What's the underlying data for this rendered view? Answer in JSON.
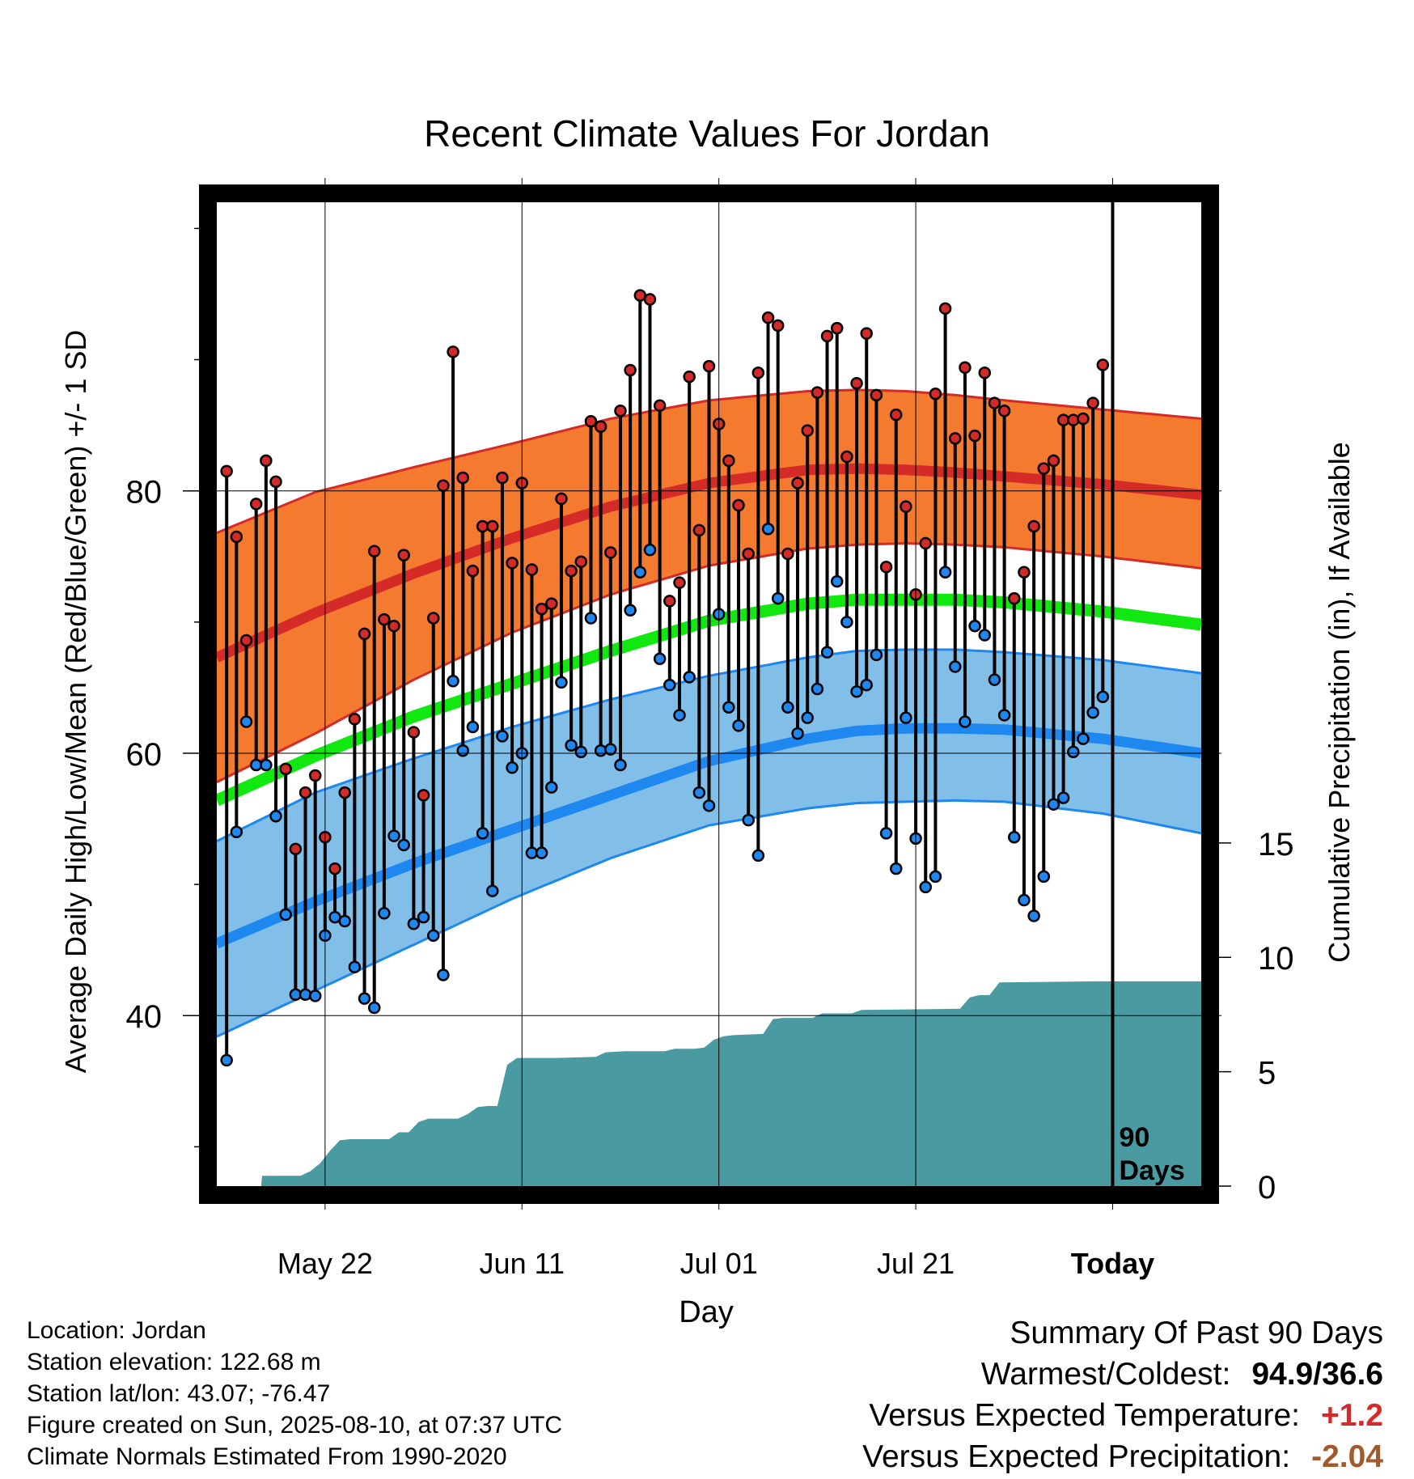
{
  "chart_data": {
    "type": "line",
    "title": "Recent Climate Values For Jordan",
    "xlabel": "Day",
    "ylabel_left": "Average Daily High/Low/Mean (Red/Blue/Green) +/- 1 SD",
    "ylabel_right": "Cumulative Precipitation (in), If Available",
    "ylim_left": [
      27,
      102
    ],
    "yticks_left": [
      40,
      60,
      80
    ],
    "ylim_right": [
      0,
      43
    ],
    "yticks_right": [
      0,
      5,
      10,
      15
    ],
    "xlim": [
      0,
      100
    ],
    "xticks": [
      {
        "day": 11,
        "label": "May 22"
      },
      {
        "day": 31,
        "label": "Jun 11"
      },
      {
        "day": 51,
        "label": "Jul 01"
      },
      {
        "day": 71,
        "label": "Jul 21"
      },
      {
        "day": 91,
        "label": "Today"
      }
    ],
    "today_day": 91,
    "today_label": "90\nDays",
    "grid": true,
    "colors": {
      "high_band": "#f47a30",
      "high_mean": "#d42a28",
      "high_edge": "#d42a28",
      "low_band": "#82bfe8",
      "low_mean": "#1e88f0",
      "low_edge": "#1e88f0",
      "avg_mean": "#10e810",
      "precip": "#4a9aa2",
      "high_dot": "#d42a28",
      "low_dot": "#1e88f0"
    },
    "normals": {
      "days": [
        0,
        10,
        20,
        30,
        40,
        50,
        60,
        65,
        70,
        75,
        80,
        90,
        100
      ],
      "high_mean": [
        67.3,
        70.7,
        73.7,
        76.4,
        78.8,
        80.6,
        81.6,
        81.7,
        81.6,
        81.4,
        81.1,
        80.5,
        79.7
      ],
      "high_upper": [
        76.8,
        79.9,
        81.8,
        83.6,
        85.5,
        86.9,
        87.6,
        87.7,
        87.6,
        87.3,
        86.9,
        86.2,
        85.5
      ],
      "high_lower": [
        57.8,
        61.5,
        65.6,
        69.2,
        72.1,
        74.3,
        75.6,
        75.9,
        76.0,
        75.9,
        75.7,
        75.0,
        74.1
      ],
      "avg_mean": [
        56.4,
        59.8,
        62.8,
        65.3,
        67.8,
        70.1,
        71.4,
        71.7,
        71.7,
        71.7,
        71.5,
        70.8,
        69.8
      ],
      "low_mean": [
        45.5,
        48.7,
        51.6,
        54.2,
        56.8,
        59.4,
        61.1,
        61.7,
        61.9,
        61.9,
        61.8,
        61.1,
        60.0
      ],
      "low_upper": [
        53.3,
        57.0,
        59.6,
        62.0,
        64.1,
        65.9,
        67.3,
        67.8,
        67.9,
        67.9,
        67.7,
        67.1,
        66.1
      ],
      "low_lower": [
        38.4,
        41.9,
        45.4,
        48.9,
        52.0,
        54.5,
        55.8,
        56.2,
        56.3,
        56.4,
        56.3,
        55.4,
        53.9
      ]
    },
    "daily_high": [
      81.5,
      76.5,
      68.6,
      79.0,
      82.3,
      80.7,
      58.8,
      52.7,
      57.0,
      58.3,
      53.6,
      51.2,
      57.0,
      62.6,
      69.1,
      75.4,
      70.2,
      69.7,
      75.1,
      61.6,
      56.8,
      70.3,
      80.4,
      90.6,
      81.0,
      73.9,
      77.3,
      77.3,
      81.0,
      74.5,
      80.6,
      74.0,
      71.0,
      71.4,
      79.4,
      73.9,
      74.6,
      85.3,
      84.9,
      75.3,
      86.1,
      89.2,
      94.9,
      94.6,
      86.5,
      71.6,
      73.0,
      88.7,
      77.0,
      89.5,
      85.1,
      82.3,
      78.9,
      75.2,
      89.0,
      93.2,
      92.6,
      75.2,
      80.6,
      84.6,
      87.5,
      91.8,
      92.4,
      82.6,
      88.2,
      92.0,
      87.3,
      74.2,
      85.8,
      78.8,
      72.1,
      76.0,
      87.4,
      93.9,
      84.0,
      89.4,
      84.2,
      89.0,
      86.7,
      86.1,
      71.8,
      73.8,
      77.3,
      81.7,
      82.3,
      85.4,
      85.4,
      85.5,
      86.7,
      89.6
    ],
    "daily_low": [
      36.6,
      54.0,
      62.4,
      59.1,
      59.1,
      55.2,
      47.7,
      41.6,
      41.6,
      41.5,
      46.1,
      47.5,
      47.2,
      43.7,
      41.3,
      40.6,
      47.8,
      53.7,
      53.0,
      47.0,
      47.5,
      46.1,
      43.1,
      65.5,
      60.2,
      62.0,
      53.9,
      49.5,
      61.3,
      58.9,
      60.0,
      52.4,
      52.4,
      57.4,
      65.4,
      60.6,
      60.1,
      70.3,
      60.2,
      60.3,
      59.1,
      70.9,
      73.8,
      75.5,
      67.2,
      65.2,
      62.9,
      65.8,
      57.0,
      56.0,
      70.6,
      63.5,
      62.1,
      54.9,
      52.2,
      77.1,
      71.8,
      63.5,
      61.5,
      62.7,
      64.9,
      67.7,
      73.1,
      70.0,
      64.7,
      65.2,
      67.5,
      53.9,
      51.2,
      62.7,
      53.5,
      49.8,
      50.6,
      73.8,
      66.6,
      62.4,
      69.7,
      69.0,
      65.6,
      62.9,
      53.6,
      48.8,
      47.6,
      50.6,
      56.1,
      56.6,
      60.1,
      61.1,
      63.1,
      64.3
    ],
    "precip": [
      [
        0,
        0
      ],
      [
        4.5,
        0
      ],
      [
        4.6,
        0.45
      ],
      [
        8.5,
        0.45
      ],
      [
        9.5,
        0.65
      ],
      [
        10.5,
        1.0
      ],
      [
        11.5,
        1.55
      ],
      [
        12.5,
        2.0
      ],
      [
        13.5,
        2.05
      ],
      [
        17.5,
        2.05
      ],
      [
        18.5,
        2.35
      ],
      [
        19.5,
        2.35
      ],
      [
        20.5,
        2.8
      ],
      [
        21.5,
        2.95
      ],
      [
        24.5,
        2.95
      ],
      [
        25.5,
        3.15
      ],
      [
        26.5,
        3.45
      ],
      [
        27.5,
        3.5
      ],
      [
        28.5,
        3.5
      ],
      [
        29.5,
        5.3
      ],
      [
        30.5,
        5.6
      ],
      [
        34.5,
        5.6
      ],
      [
        38.5,
        5.65
      ],
      [
        39.5,
        5.85
      ],
      [
        41.5,
        5.9
      ],
      [
        45.5,
        5.9
      ],
      [
        46.5,
        6.0
      ],
      [
        48.5,
        6.0
      ],
      [
        49.5,
        6.05
      ],
      [
        50.5,
        6.4
      ],
      [
        51.5,
        6.55
      ],
      [
        52.5,
        6.6
      ],
      [
        55.5,
        6.65
      ],
      [
        56.5,
        7.3
      ],
      [
        57.5,
        7.35
      ],
      [
        60.5,
        7.35
      ],
      [
        61.5,
        7.55
      ],
      [
        64.5,
        7.55
      ],
      [
        65.5,
        7.7
      ],
      [
        75.5,
        7.75
      ],
      [
        76.5,
        8.25
      ],
      [
        77.5,
        8.35
      ],
      [
        78.5,
        8.35
      ],
      [
        79.5,
        8.9
      ],
      [
        89.5,
        8.95
      ],
      [
        100,
        8.95
      ]
    ]
  },
  "info": {
    "location": "Location: Jordan",
    "elevation": "Station elevation: 122.68 m",
    "latlon": "Station lat/lon: 43.07; -76.47",
    "created": "Figure created on Sun, 2025-08-10, at 07:37 UTC",
    "normals": "Climate Normals Estimated From 1990-2020"
  },
  "summary": {
    "heading": "Summary Of Past 90 Days",
    "warm_cold_label": "Warmest/Coldest:",
    "warm_cold_value": "94.9/36.6",
    "temp_label": "Versus Expected Temperature:",
    "temp_value": "+1.2",
    "temp_color": "#d42a28",
    "precip_label": "Versus Expected Precipitation:",
    "precip_value": "-2.04",
    "precip_color": "#a05a2c"
  }
}
